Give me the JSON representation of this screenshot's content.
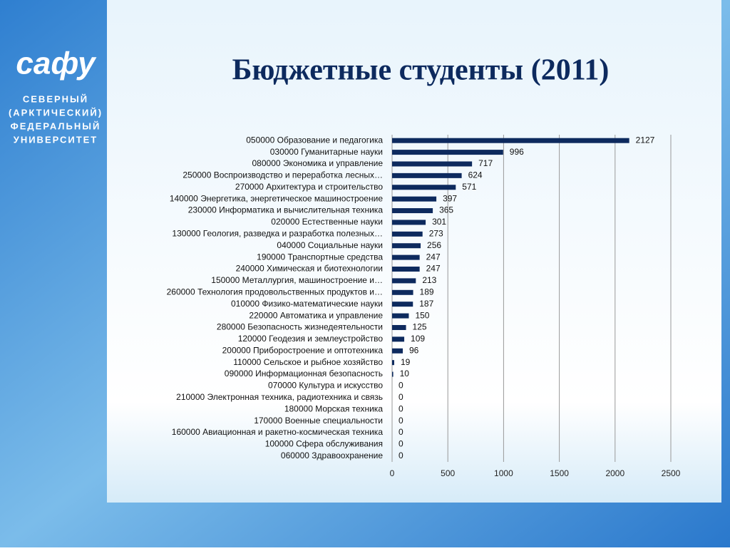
{
  "logo": {
    "mark": "сафу",
    "lines": [
      "СЕВЕРНЫЙ",
      "(АРКТИЧЕСКИЙ)",
      "ФЕДЕРАЛЬНЫЙ",
      "УНИВЕРСИТЕТ"
    ]
  },
  "chart_data": {
    "type": "bar",
    "orientation": "horizontal",
    "title": "Бюджетные студенты (2011)",
    "categories": [
      "050000 Образование и педагогика",
      "030000 Гуманитарные науки",
      "080000 Экономика и управление",
      "250000 Воспроизводство и переработка лесных…",
      "270000 Архитектура и строительство",
      "140000 Энергетика, энергетическое машиностроение",
      "230000 Информатика и вычислительная техника",
      "020000 Естественные науки",
      "130000 Геология, разведка и разработка полезных…",
      "040000 Социальные науки",
      "190000 Транспортные средства",
      "240000 Химическая и биотехнологии",
      "150000 Металлургия, машиностроение и…",
      "260000 Технология продовольственных продуктов и…",
      "010000 Физико-математические науки",
      "220000 Автоматика и управление",
      "280000 Безопасность жизнедеятельности",
      "120000 Геодезия и землеустройство",
      "200000 Приборостроение и оптотехника",
      "110000 Сельское и рыбное хозяйство",
      "090000 Информационная безопасность",
      "070000 Культура и искусство",
      "210000 Электронная техника, радиотехника и связь",
      "180000 Морская техника",
      "170000 Военные специальности",
      "160000 Авиационная и ракетно-космическая техника",
      "100000 Сфера обслуживания",
      "060000 Здравоохранение"
    ],
    "values": [
      2127,
      996,
      717,
      624,
      571,
      397,
      365,
      301,
      273,
      256,
      247,
      247,
      213,
      189,
      187,
      150,
      125,
      109,
      96,
      19,
      10,
      0,
      0,
      0,
      0,
      0,
      0,
      0
    ],
    "color": "#0d2a5e",
    "xlim": [
      0,
      2500
    ],
    "xticks": [
      0,
      500,
      1000,
      1500,
      2000,
      2500
    ],
    "grid": true
  }
}
